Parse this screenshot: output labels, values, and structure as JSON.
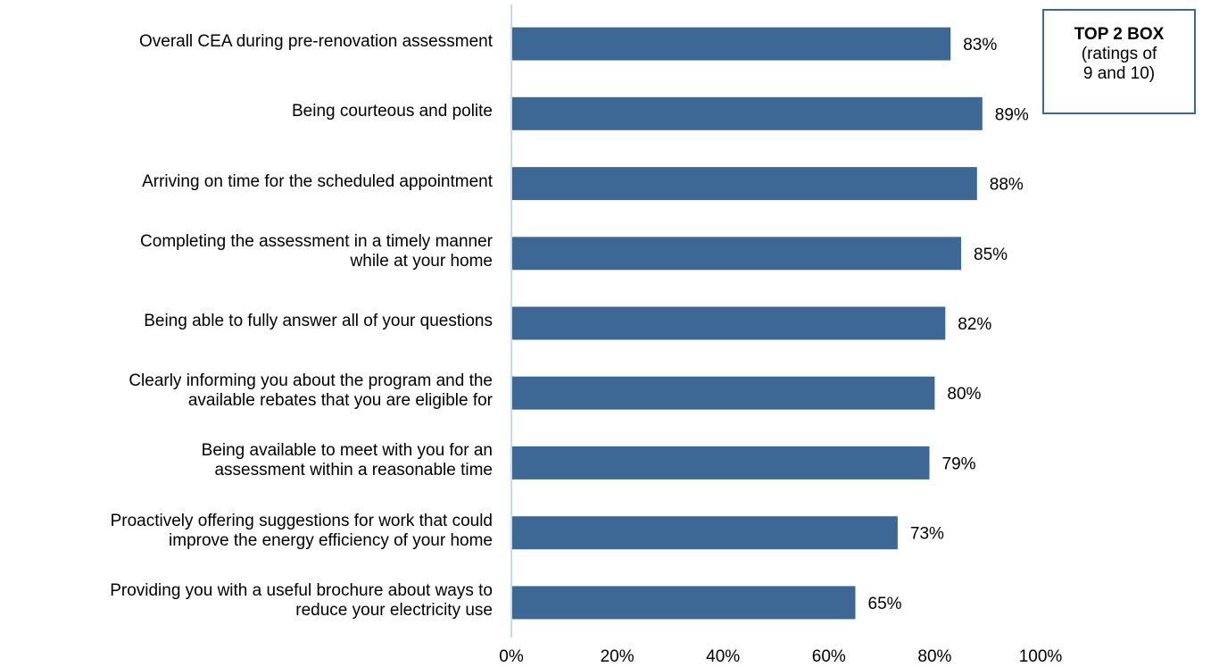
{
  "chart_data": {
    "type": "bar",
    "orientation": "horizontal",
    "categories": [
      [
        "Overall CEA during pre-renovation assessment"
      ],
      [
        "Being courteous and polite"
      ],
      [
        "Arriving on time for the scheduled appointment"
      ],
      [
        "Completing the assessment in a timely manner",
        "while at your home"
      ],
      [
        "Being able to fully answer all of your questions"
      ],
      [
        "Clearly informing you about the program and the",
        "available rebates that you are eligible for"
      ],
      [
        "Being available to meet with you for an",
        "assessment within a reasonable time"
      ],
      [
        "Proactively offering suggestions for work that could",
        "improve the energy efficiency of your home"
      ],
      [
        "Providing you with a useful brochure about ways to",
        "reduce your electricity use"
      ]
    ],
    "values": [
      83,
      89,
      88,
      85,
      82,
      80,
      79,
      73,
      65
    ],
    "value_labels": [
      "83%",
      "89%",
      "88%",
      "85%",
      "82%",
      "80%",
      "79%",
      "73%",
      "65%"
    ],
    "xlim": [
      0,
      100
    ],
    "x_ticks": [
      0,
      20,
      40,
      60,
      80,
      100
    ],
    "x_tick_labels": [
      "0%",
      "20%",
      "40%",
      "60%",
      "80%",
      "100%"
    ],
    "bar_color": "#3d6896",
    "axis_color": "#b8cce4",
    "grid": false,
    "legend_placement": "top-right"
  },
  "legend_box": {
    "title": "TOP 2 BOX",
    "line1": "(ratings of",
    "line2": "9 and 10)"
  }
}
